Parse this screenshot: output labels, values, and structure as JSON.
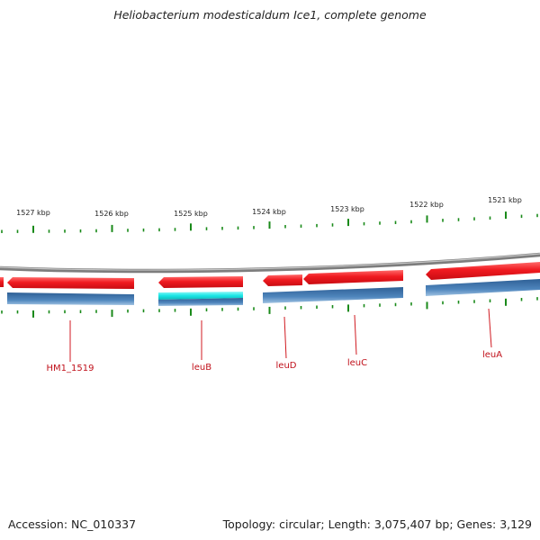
{
  "title": "Heliobacterium modesticaldum Ice1, complete genome",
  "kbp_labels": [
    "1527 kbp",
    "1526 kbp",
    "1525 kbp",
    "1524 kbp",
    "1523 kbp",
    "1522 kbp",
    "1521 kbp"
  ],
  "genes": [
    "HM1_1519",
    "leuB",
    "leuD",
    "leuC",
    "leuA"
  ],
  "footer": {
    "accession": "Accession: NC_010337",
    "topology": "Topology: circular; Length: 3,075,407 bp; Genes: 3,129"
  },
  "colors": {
    "gene_arrow": "#e8141a",
    "blue_bar": "#4a7fb5",
    "cyan_bar": "#19e6e6",
    "backbone": "#8a8a8a",
    "tick": "#1a8a1a",
    "gene_label": "#c0101a"
  }
}
